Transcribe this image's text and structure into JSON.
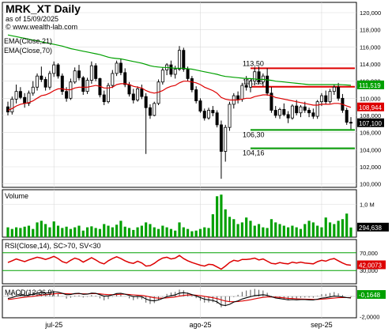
{
  "header": {
    "title": "MRK_XT Daily",
    "subtitle": "as of 15/09/2025",
    "website": "© www.wealth-lab.com",
    "ema21_label": "EMA(Close,21)",
    "ema70_label": "EMA(Close,70)"
  },
  "panes": {
    "volume_label": "Volume",
    "rsi_label": "RSI(Close,14), SC>70, SV<30",
    "macd_label": "MACD(12,26,9)"
  },
  "colors": {
    "up": "#000000",
    "down": "#000000",
    "ema21": "#dd0000",
    "ema70": "#00a000",
    "resistance": "#dd0000",
    "support": "#009900",
    "volume": "#00a000",
    "rsi": "#dd0000",
    "rsi_bands": "#00a000",
    "macd": "#000000",
    "signal": "#dd0000"
  },
  "price_axis": {
    "ticks": [
      "120,000",
      "118,000",
      "116,000",
      "114,000",
      "112,000",
      "110,000",
      "108,000",
      "106,000",
      "104,000",
      "102,000",
      "100,000"
    ],
    "badges": [
      {
        "label": "111,519",
        "value": 111.519,
        "color": "#00a000"
      },
      {
        "label": "108,944",
        "value": 108.944,
        "color": "#dd0000"
      },
      {
        "label": "107,100",
        "value": 107.1,
        "color": "#000000"
      }
    ]
  },
  "levels": [
    {
      "label": "113,50",
      "value": 113.5,
      "type": "resistance"
    },
    {
      "label": "111,35",
      "value": 111.35,
      "type": "resistance"
    },
    {
      "label": "106,30",
      "value": 106.3,
      "type": "support"
    },
    {
      "label": "104,16",
      "value": 104.16,
      "type": "support"
    }
  ],
  "volume_axis": {
    "tick": "1,0 M",
    "badge": "294,638"
  },
  "rsi_axis": {
    "ticks": [
      "70,000",
      "30,000"
    ],
    "badge": "42,0073"
  },
  "macd_axis": {
    "ticks": [
      "-2,0000"
    ],
    "badge": "-0,1648"
  },
  "x_axis": {
    "ticks": [
      {
        "label": "jul-25",
        "index": 11
      },
      {
        "label": "ago-25",
        "index": 46
      },
      {
        "label": "sep-25",
        "index": 75
      }
    ]
  },
  "chart_data": {
    "type": "candlestick",
    "bars": [
      [
        109.0,
        109.6,
        108.0,
        108.4
      ],
      [
        108.4,
        110.2,
        108.1,
        109.9
      ],
      [
        109.9,
        111.6,
        109.4,
        110.8
      ],
      [
        110.8,
        111.3,
        109.9,
        110.1
      ],
      [
        110.1,
        110.6,
        108.9,
        109.4
      ],
      [
        109.4,
        110.9,
        109.1,
        110.6
      ],
      [
        110.6,
        112.0,
        110.3,
        111.3
      ],
      [
        111.3,
        112.9,
        110.9,
        112.6
      ],
      [
        112.6,
        113.7,
        111.9,
        112.2
      ],
      [
        112.2,
        112.5,
        110.9,
        111.3
      ],
      [
        111.3,
        113.2,
        111.0,
        112.9
      ],
      [
        112.9,
        114.3,
        112.5,
        113.9
      ],
      [
        113.9,
        114.1,
        112.3,
        112.6
      ],
      [
        112.6,
        112.9,
        110.4,
        110.8
      ],
      [
        110.8,
        111.3,
        109.6,
        110.0
      ],
      [
        110.0,
        112.3,
        109.8,
        111.9
      ],
      [
        111.9,
        113.6,
        111.7,
        113.2
      ],
      [
        113.2,
        113.9,
        112.1,
        112.4
      ],
      [
        112.4,
        112.6,
        110.4,
        110.8
      ],
      [
        110.8,
        112.4,
        110.5,
        112.1
      ],
      [
        112.1,
        114.3,
        111.7,
        113.8
      ],
      [
        113.8,
        114.1,
        112.0,
        112.3
      ],
      [
        112.3,
        112.4,
        110.1,
        110.4
      ],
      [
        110.4,
        110.9,
        109.2,
        109.6
      ],
      [
        109.6,
        111.8,
        109.4,
        111.5
      ],
      [
        111.5,
        113.3,
        111.2,
        112.9
      ],
      [
        112.9,
        114.4,
        112.6,
        114.1
      ],
      [
        114.1,
        114.6,
        112.7,
        113.0
      ],
      [
        113.0,
        113.5,
        111.3,
        111.6
      ],
      [
        111.6,
        111.9,
        110.2,
        110.5
      ],
      [
        110.5,
        111.1,
        109.4,
        109.8
      ],
      [
        109.8,
        111.4,
        109.6,
        111.1
      ],
      [
        111.1,
        111.6,
        109.9,
        110.2
      ],
      [
        110.2,
        110.6,
        103.5,
        108.9
      ],
      [
        108.9,
        109.3,
        107.6,
        108.0
      ],
      [
        108.0,
        109.6,
        107.9,
        109.4
      ],
      [
        109.4,
        112.2,
        109.2,
        111.9
      ],
      [
        111.9,
        113.6,
        111.6,
        113.3
      ],
      [
        113.3,
        114.1,
        112.7,
        113.9
      ],
      [
        113.9,
        114.4,
        112.5,
        112.8
      ],
      [
        112.8,
        113.8,
        112.3,
        113.4
      ],
      [
        113.4,
        116.1,
        113.2,
        115.6
      ],
      [
        115.6,
        115.9,
        113.1,
        113.4
      ],
      [
        113.4,
        113.7,
        112.0,
        112.3
      ],
      [
        112.3,
        112.6,
        110.7,
        111.0
      ],
      [
        111.0,
        111.4,
        109.4,
        109.7
      ],
      [
        109.7,
        110.0,
        108.3,
        108.5
      ],
      [
        108.5,
        108.8,
        107.4,
        107.7
      ],
      [
        107.7,
        108.9,
        107.5,
        108.6
      ],
      [
        108.6,
        109.1,
        107.9,
        108.3
      ],
      [
        108.3,
        108.6,
        106.6,
        106.9
      ],
      [
        106.9,
        107.4,
        100.6,
        103.8
      ],
      [
        103.8,
        106.9,
        102.6,
        106.6
      ],
      [
        106.6,
        109.6,
        106.2,
        109.3
      ],
      [
        109.3,
        110.6,
        108.8,
        110.3
      ],
      [
        110.3,
        110.8,
        109.4,
        109.9
      ],
      [
        109.9,
        111.8,
        109.6,
        111.5
      ],
      [
        111.5,
        112.6,
        110.9,
        111.3
      ],
      [
        111.3,
        112.2,
        110.7,
        112.0
      ],
      [
        112.0,
        113.6,
        111.5,
        113.1
      ],
      [
        113.1,
        113.7,
        111.6,
        111.9
      ],
      [
        111.9,
        112.9,
        111.4,
        112.6
      ],
      [
        112.6,
        113.5,
        110.3,
        110.6
      ],
      [
        110.6,
        111.3,
        108.3,
        108.6
      ],
      [
        108.6,
        109.1,
        107.7,
        108.0
      ],
      [
        108.0,
        108.9,
        107.6,
        108.7
      ],
      [
        108.7,
        109.4,
        107.9,
        108.1
      ],
      [
        108.1,
        108.5,
        107.1,
        107.7
      ],
      [
        107.7,
        109.3,
        107.5,
        109.1
      ],
      [
        109.1,
        109.8,
        108.0,
        108.3
      ],
      [
        108.3,
        109.2,
        107.8,
        109.0
      ],
      [
        109.0,
        109.6,
        108.3,
        108.6
      ],
      [
        108.6,
        108.9,
        107.8,
        108.3
      ],
      [
        108.3,
        108.8,
        107.6,
        107.9
      ],
      [
        107.9,
        109.8,
        107.6,
        109.6
      ],
      [
        109.6,
        110.6,
        109.1,
        110.3
      ],
      [
        110.3,
        110.9,
        109.3,
        109.6
      ],
      [
        109.6,
        111.1,
        109.4,
        110.8
      ],
      [
        110.8,
        111.6,
        110.4,
        111.3
      ],
      [
        111.3,
        111.8,
        109.7,
        110.0
      ],
      [
        110.0,
        110.5,
        108.3,
        108.6
      ],
      [
        108.6,
        108.9,
        106.9,
        107.2
      ],
      [
        107.2,
        107.8,
        106.4,
        107.1
      ]
    ],
    "ema21": [
      108.6,
      108.8,
      109.1,
      109.3,
      109.4,
      109.5,
      109.7,
      110.0,
      110.3,
      110.4,
      110.6,
      110.9,
      111.1,
      111.1,
      111.0,
      111.0,
      111.2,
      111.3,
      111.3,
      111.3,
      111.4,
      111.5,
      111.4,
      111.2,
      111.2,
      111.3,
      111.6,
      111.7,
      111.7,
      111.6,
      111.4,
      111.3,
      111.2,
      110.9,
      110.7,
      110.6,
      110.7,
      110.9,
      111.2,
      111.4,
      111.5,
      111.8,
      112.0,
      112.0,
      111.9,
      111.8,
      111.6,
      111.3,
      111.1,
      110.9,
      110.6,
      110.1,
      109.9,
      109.8,
      109.8,
      109.8,
      109.9,
      110.0,
      110.0,
      110.2,
      110.3,
      110.4,
      110.4,
      110.3,
      110.1,
      110.0,
      109.9,
      109.8,
      109.7,
      109.6,
      109.5,
      109.4,
      109.3,
      109.2,
      109.2,
      109.3,
      109.3,
      109.3,
      109.4,
      109.4,
      109.3,
      109.1,
      108.944
    ],
    "ema70": [
      117.4,
      117.3,
      117.2,
      117.1,
      117.0,
      116.9,
      116.8,
      116.7,
      116.6,
      116.5,
      116.4,
      116.3,
      116.2,
      116.1,
      115.95,
      115.8,
      115.7,
      115.6,
      115.5,
      115.4,
      115.3,
      115.2,
      115.1,
      114.95,
      114.8,
      114.7,
      114.65,
      114.6,
      114.5,
      114.4,
      114.3,
      114.2,
      114.1,
      113.95,
      113.8,
      113.7,
      113.65,
      113.6,
      113.6,
      113.55,
      113.5,
      113.5,
      113.5,
      113.45,
      113.4,
      113.3,
      113.2,
      113.1,
      113.0,
      112.9,
      112.8,
      112.65,
      112.55,
      112.5,
      112.45,
      112.4,
      112.35,
      112.3,
      112.3,
      112.25,
      112.2,
      112.2,
      112.15,
      112.1,
      112.0,
      111.95,
      111.9,
      111.85,
      111.8,
      111.75,
      111.7,
      111.65,
      111.6,
      111.6,
      111.6,
      111.6,
      111.6,
      111.6,
      111.6,
      111.6,
      111.58,
      111.55,
      111.519
    ],
    "volume": [
      0.3,
      0.25,
      0.3,
      0.28,
      0.32,
      0.35,
      0.25,
      0.45,
      0.5,
      0.4,
      0.3,
      0.48,
      0.35,
      0.28,
      0.32,
      0.25,
      0.3,
      0.35,
      0.2,
      0.3,
      0.33,
      0.28,
      0.25,
      0.4,
      0.35,
      0.3,
      0.38,
      0.5,
      0.32,
      0.28,
      0.22,
      0.3,
      0.35,
      0.45,
      0.4,
      0.3,
      0.25,
      0.35,
      0.3,
      0.25,
      0.2,
      0.45,
      0.3,
      0.25,
      0.18,
      0.2,
      0.25,
      0.3,
      0.28,
      0.7,
      1.25,
      1.3,
      0.85,
      0.62,
      0.55,
      0.4,
      0.45,
      0.6,
      0.5,
      0.35,
      0.4,
      0.3,
      0.28,
      0.55,
      0.45,
      0.4,
      0.35,
      0.3,
      0.35,
      0.3,
      0.25,
      0.4,
      0.5,
      0.45,
      0.35,
      0.3,
      0.6,
      0.45,
      0.4,
      0.5,
      0.55,
      0.72,
      0.294638
    ],
    "rsi": [
      48,
      52,
      56,
      53,
      50,
      54,
      57,
      60,
      58,
      55,
      58,
      62,
      57,
      50,
      47,
      53,
      58,
      55,
      49,
      54,
      59,
      54,
      48,
      45,
      52,
      57,
      61,
      57,
      52,
      48,
      46,
      51,
      47,
      40,
      41,
      46,
      53,
      58,
      60,
      56,
      58,
      64,
      57,
      52,
      48,
      45,
      42,
      40,
      44,
      43,
      38,
      33,
      40,
      48,
      53,
      51,
      55,
      55,
      56,
      58,
      54,
      56,
      51,
      46,
      45,
      48,
      46,
      45,
      49,
      47,
      49,
      47,
      46,
      45,
      50,
      53,
      51,
      55,
      57,
      52,
      47,
      43,
      42.0073
    ],
    "macd": [
      -0.2,
      -0.12,
      0.02,
      0.1,
      0.08,
      0.12,
      0.2,
      0.32,
      0.38,
      0.32,
      0.36,
      0.46,
      0.42,
      0.3,
      0.16,
      0.18,
      0.28,
      0.3,
      0.2,
      0.22,
      0.32,
      0.3,
      0.16,
      0.02,
      0.05,
      0.14,
      0.28,
      0.3,
      0.22,
      0.1,
      -0.02,
      0.0,
      -0.04,
      -0.26,
      -0.4,
      -0.44,
      -0.36,
      -0.2,
      -0.04,
      0.06,
      0.14,
      0.32,
      0.36,
      0.3,
      0.18,
      0.04,
      -0.12,
      -0.28,
      -0.34,
      -0.4,
      -0.54,
      -0.84,
      -0.9,
      -0.78,
      -0.56,
      -0.44,
      -0.26,
      -0.14,
      -0.04,
      0.08,
      0.12,
      0.16,
      0.1,
      -0.04,
      -0.16,
      -0.22,
      -0.28,
      -0.34,
      -0.32,
      -0.34,
      -0.32,
      -0.32,
      -0.34,
      -0.36,
      -0.28,
      -0.18,
      -0.14,
      -0.06,
      0.02,
      0.0,
      -0.06,
      -0.12,
      -0.1648
    ],
    "signal": [
      -0.3,
      -0.26,
      -0.2,
      -0.14,
      -0.09,
      -0.05,
      0.0,
      0.06,
      0.12,
      0.16,
      0.2,
      0.25,
      0.28,
      0.29,
      0.26,
      0.24,
      0.25,
      0.26,
      0.25,
      0.24,
      0.26,
      0.27,
      0.25,
      0.2,
      0.17,
      0.16,
      0.18,
      0.21,
      0.21,
      0.19,
      0.15,
      0.12,
      0.09,
      0.02,
      -0.06,
      -0.14,
      -0.18,
      -0.18,
      -0.15,
      -0.11,
      -0.06,
      0.02,
      0.09,
      0.13,
      0.14,
      0.12,
      0.07,
      0.0,
      -0.07,
      -0.14,
      -0.22,
      -0.35,
      -0.46,
      -0.52,
      -0.53,
      -0.51,
      -0.46,
      -0.4,
      -0.33,
      -0.25,
      -0.17,
      -0.1,
      -0.06,
      -0.06,
      -0.08,
      -0.11,
      -0.15,
      -0.19,
      -0.22,
      -0.24,
      -0.26,
      -0.27,
      -0.29,
      -0.3,
      -0.3,
      -0.28,
      -0.25,
      -0.21,
      -0.17,
      -0.13,
      -0.12,
      -0.12,
      -0.13
    ]
  }
}
